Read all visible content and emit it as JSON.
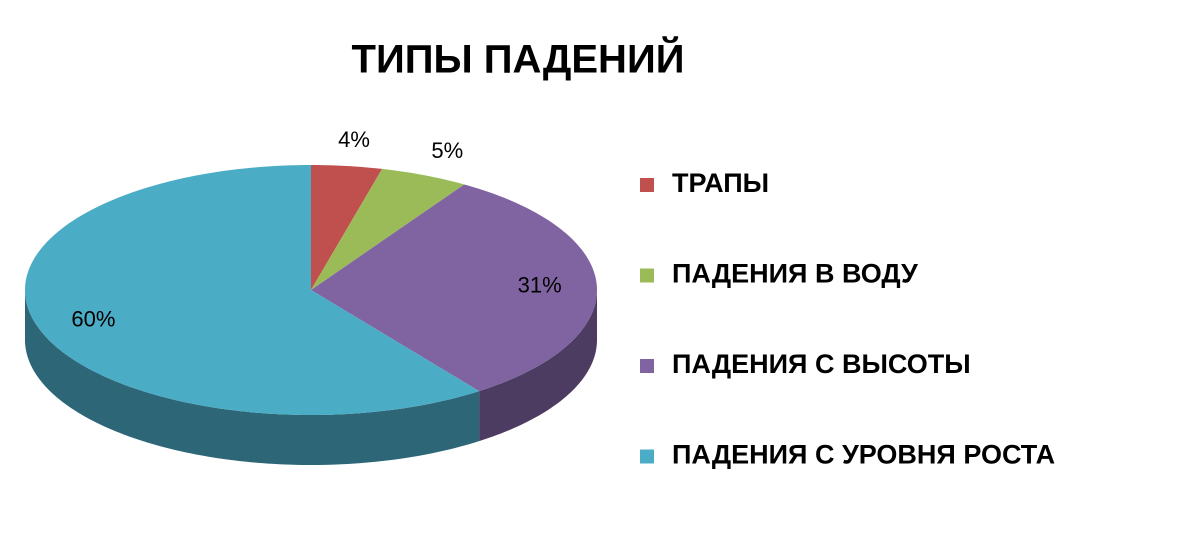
{
  "chart_data": {
    "type": "pie",
    "title": "ТИПЫ ПАДЕНИЙ",
    "categories": [
      "ТРАПЫ",
      "ПАДЕНИЯ В ВОДУ",
      "ПАДЕНИЯ С ВЫСОТЫ",
      "ПАДЕНИЯ С УРОВНЯ РОСТА"
    ],
    "values": [
      4,
      5,
      31,
      60
    ],
    "value_labels": [
      "4%",
      "5%",
      "31%",
      "60%"
    ],
    "colors": [
      "#c0504d",
      "#9bbb59",
      "#8064a2",
      "#4bacc6"
    ]
  }
}
